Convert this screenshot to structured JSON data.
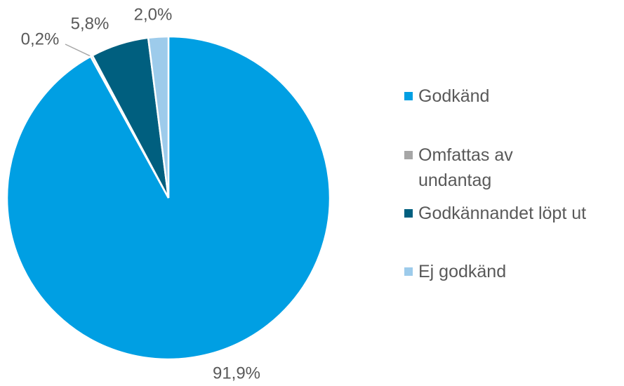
{
  "chart_data": {
    "type": "pie",
    "categories": [
      "Godkänd",
      "Omfattas av undantag",
      "Godkännandet löpt ut",
      "Ej godkänd"
    ],
    "values": [
      91.9,
      0.2,
      5.8,
      2.0
    ],
    "value_labels": [
      "91,9%",
      "0,2%",
      "5,8%",
      "2,0%"
    ],
    "colors": [
      "#009fe3",
      "#a6a6a6",
      "#005f7f",
      "#9dcbeb"
    ],
    "legend": "right"
  }
}
